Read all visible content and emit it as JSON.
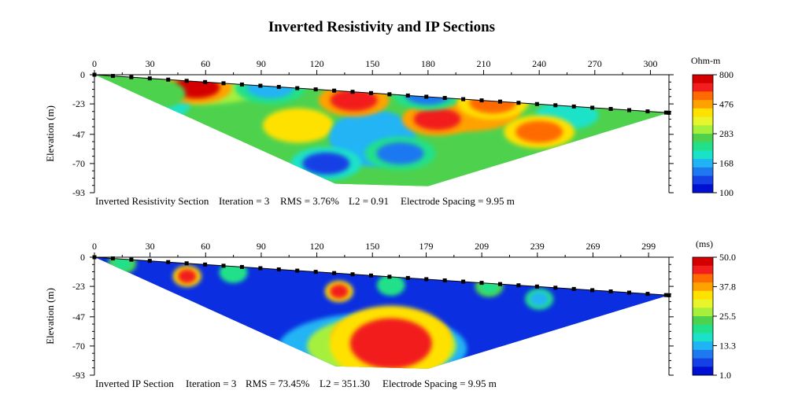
{
  "title": "Inverted Resistivity and IP Sections",
  "chart_data": [
    {
      "type": "heatmap",
      "name": "Inverted Resistivity Section",
      "ylabel": "Elevation (m)",
      "x_ticks": [
        "0",
        "30",
        "60",
        "90",
        "120",
        "150",
        "180",
        "210",
        "240",
        "270",
        "300"
      ],
      "x_tick_values": [
        0,
        30,
        60,
        90,
        120,
        150,
        180,
        210,
        240,
        270,
        300
      ],
      "xlim": [
        0,
        310
      ],
      "y_ticks": [
        "0",
        "-23",
        "-47",
        "-70",
        "-93"
      ],
      "y_tick_values": [
        0,
        -23,
        -47,
        -70,
        -93
      ],
      "ylim": [
        -93,
        0
      ],
      "surface_profile": [
        [
          0,
          0
        ],
        [
          310,
          -30
        ]
      ],
      "section_boundary": [
        [
          0,
          0
        ],
        [
          310,
          -30
        ],
        [
          180,
          -88
        ],
        [
          130,
          -86
        ]
      ],
      "electrode_spacing_m": 9.95,
      "info": {
        "label": "Inverted Resistivity Section",
        "iteration": "Iteration = 3",
        "rms": "RMS = 3.76%",
        "l2": "L2 = 0.91",
        "spacing": "Electrode Spacing = 9.95 m"
      },
      "colorbar": {
        "title": "Ohm-m",
        "ticks": [
          "800",
          "476",
          "283",
          "168",
          "100"
        ],
        "range": [
          100,
          800
        ],
        "colors": [
          "#d40000",
          "#f21e1e",
          "#ff6a00",
          "#ffa200",
          "#ffe100",
          "#e8f52a",
          "#a6f03c",
          "#4ed24e",
          "#20e08a",
          "#1ae2c8",
          "#20b4f5",
          "#1e78f0",
          "#1440e6",
          "#0010d2"
        ]
      },
      "anomalies": [
        {
          "x": 55,
          "y": -10,
          "value": 780
        },
        {
          "x": 140,
          "y": -20,
          "value": 700
        },
        {
          "x": 185,
          "y": -35,
          "value": 720
        },
        {
          "x": 240,
          "y": -45,
          "value": 560
        },
        {
          "x": 125,
          "y": -70,
          "value": 110
        },
        {
          "x": 165,
          "y": -62,
          "value": 140
        },
        {
          "x": 95,
          "y": -10,
          "value": 150
        },
        {
          "x": 180,
          "y": -15,
          "value": 140
        },
        {
          "x": 215,
          "y": -22,
          "value": 600
        },
        {
          "x": 30,
          "y": -15,
          "value": 260
        }
      ]
    },
    {
      "type": "heatmap",
      "name": "Inverted IP Section",
      "ylabel": "Elevation (m)",
      "x_ticks": [
        "0",
        "30",
        "60",
        "90",
        "120",
        "150",
        "179",
        "209",
        "239",
        "269",
        "299"
      ],
      "x_tick_values": [
        0,
        30,
        60,
        90,
        120,
        150,
        179,
        209,
        239,
        269,
        299
      ],
      "xlim": [
        0,
        310
      ],
      "y_ticks": [
        "0",
        "-23",
        "-47",
        "-70",
        "-93"
      ],
      "y_tick_values": [
        0,
        -23,
        -47,
        -70,
        -93
      ],
      "ylim": [
        -93,
        0
      ],
      "surface_profile": [
        [
          0,
          0
        ],
        [
          310,
          -30
        ]
      ],
      "section_boundary": [
        [
          0,
          0
        ],
        [
          310,
          -30
        ],
        [
          180,
          -88
        ],
        [
          130,
          -86
        ]
      ],
      "electrode_spacing_m": 9.95,
      "info": {
        "label": "Inverted IP Section",
        "iteration": "Iteration = 3",
        "rms": "RMS = 73.45%",
        "l2": "L2 = 351.30",
        "spacing": "Electrode Spacing = 9.95 m"
      },
      "colorbar": {
        "title": "(ms)",
        "ticks": [
          "50.0",
          "37.8",
          "25.5",
          "13.3",
          "1.0"
        ],
        "range": [
          1.0,
          50.0
        ],
        "colors": [
          "#d40000",
          "#f21e1e",
          "#ff6a00",
          "#ffa200",
          "#ffe100",
          "#e8f52a",
          "#a6f03c",
          "#4ed24e",
          "#20e08a",
          "#1ae2c8",
          "#20b4f5",
          "#1e78f0",
          "#1440e6",
          "#0010d2"
        ]
      },
      "anomalies": [
        {
          "x": 160,
          "y": -68,
          "value": 48
        },
        {
          "x": 50,
          "y": -15,
          "value": 46
        },
        {
          "x": 132,
          "y": -27,
          "value": 45
        },
        {
          "x": 160,
          "y": -22,
          "value": 18
        },
        {
          "x": 213,
          "y": -23,
          "value": 20
        },
        {
          "x": 240,
          "y": -33,
          "value": 14
        },
        {
          "x": 75,
          "y": -12,
          "value": 18
        },
        {
          "x": 15,
          "y": -5,
          "value": 20
        }
      ]
    }
  ]
}
